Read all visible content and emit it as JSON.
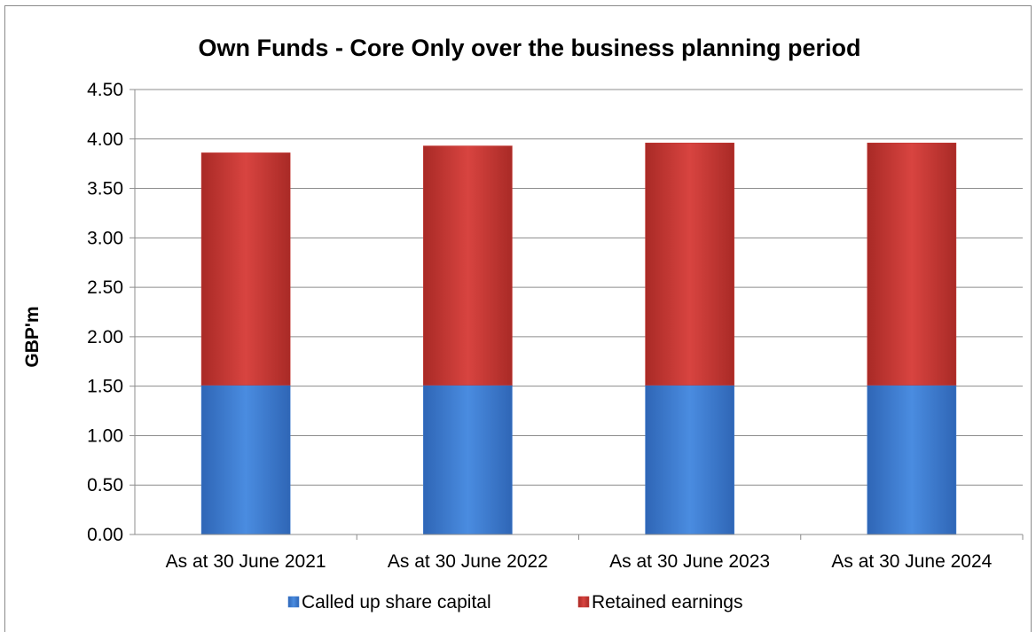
{
  "chart_data": {
    "type": "bar",
    "stacked": true,
    "title": "Own Funds - Core Only over the business planning period",
    "xlabel": "",
    "ylabel": "GBP'm",
    "categories": [
      "As at 30 June 2021",
      "As at 30 June 2022",
      "As at 30 June 2023",
      "As at 30 June 2024"
    ],
    "series": [
      {
        "name": "Called up share capital",
        "values": [
          1.51,
          1.51,
          1.51,
          1.51
        ],
        "color": "#3b7ad0"
      },
      {
        "name": "Retained earnings",
        "values": [
          2.35,
          2.42,
          2.45,
          2.45
        ],
        "color": "#c53530"
      }
    ],
    "ylim": [
      0,
      4.5
    ],
    "ytick_step": 0.5,
    "ytick_labels": [
      "0.00",
      "0.50",
      "1.00",
      "1.50",
      "2.00",
      "2.50",
      "3.00",
      "3.50",
      "4.00",
      "4.50"
    ],
    "grid": true,
    "legend_position": "bottom"
  }
}
